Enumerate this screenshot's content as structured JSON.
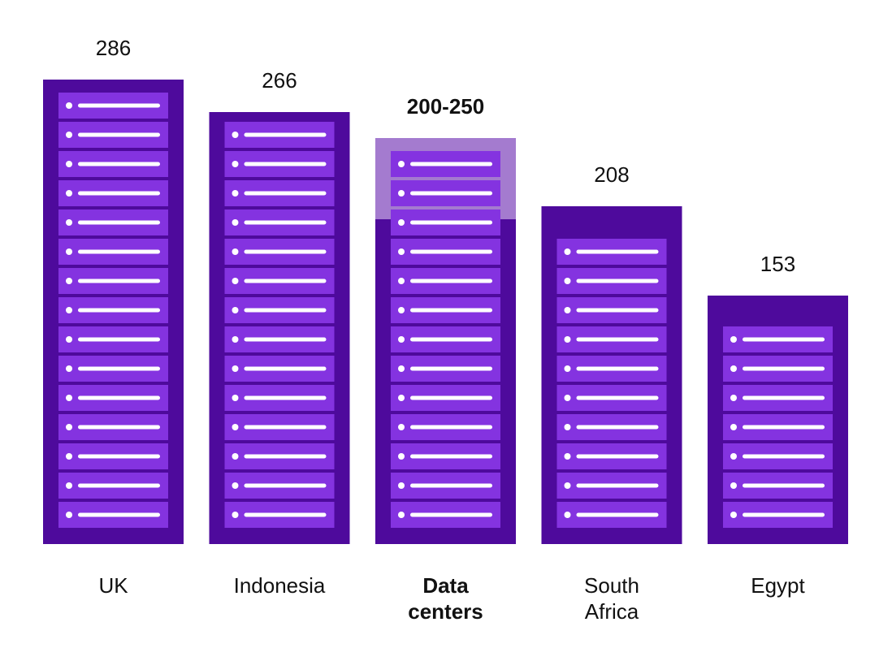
{
  "chart_data": {
    "type": "bar",
    "title": "",
    "xlabel": "",
    "ylabel": "",
    "ylim": [
      0,
      300
    ],
    "grid": false,
    "legend": "none",
    "categories": [
      [
        "UK"
      ],
      [
        "Indonesia"
      ],
      [
        "Data",
        "centers"
      ],
      [
        "South",
        "Africa"
      ],
      [
        "Egypt"
      ]
    ],
    "values": [
      286,
      266,
      225,
      208,
      153
    ],
    "value_labels": [
      "286",
      "266",
      "200-250",
      "208",
      "153"
    ],
    "range_low": [
      null,
      null,
      200,
      null,
      null
    ],
    "range_high": [
      null,
      null,
      250,
      null,
      null
    ],
    "highlight_index": 2,
    "slot_counts": [
      15,
      14,
      13,
      10,
      7
    ],
    "colors": {
      "rack_frame": "#4e0a9c",
      "slot": "#8433e0",
      "slot_line": "#ffffff",
      "range_overlay": "#a47bcf",
      "text": "#111111"
    }
  }
}
